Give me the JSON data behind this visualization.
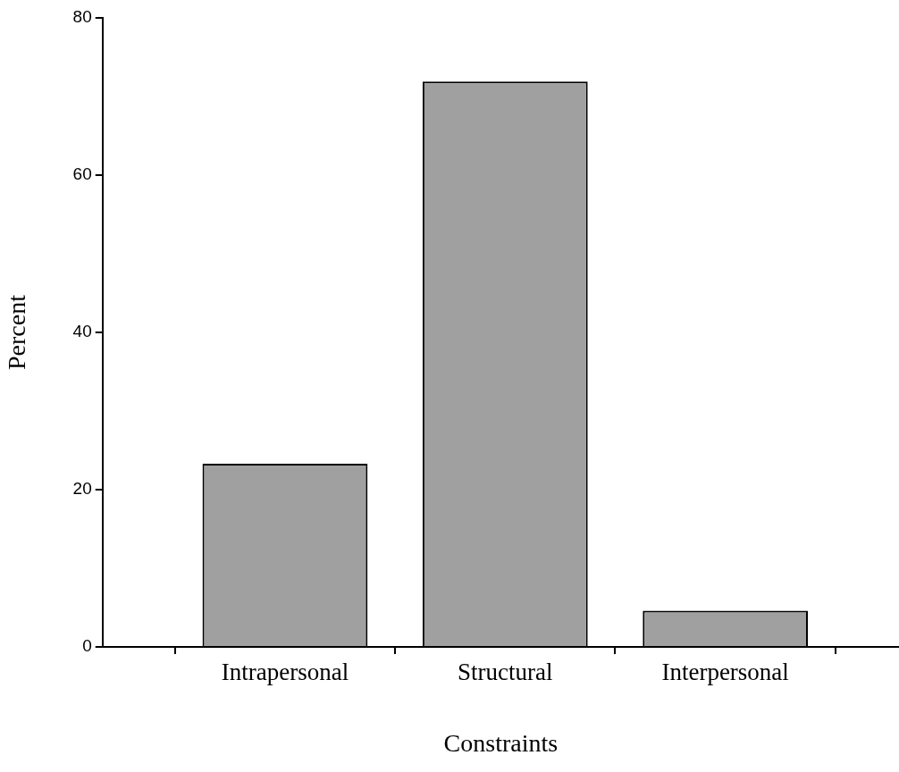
{
  "chart_data": {
    "type": "bar",
    "xlabel": "Constraints",
    "ylabel": "Percent",
    "categories": [
      "Intrapersonal",
      "Structural",
      "Interpersonal"
    ],
    "values": [
      23.3,
      71.9,
      4.6
    ],
    "color": "#a0a0a0",
    "ylim": [
      0,
      80
    ],
    "yticks": [
      0,
      20,
      40,
      60,
      80
    ],
    "grid": false,
    "legend": false
  }
}
